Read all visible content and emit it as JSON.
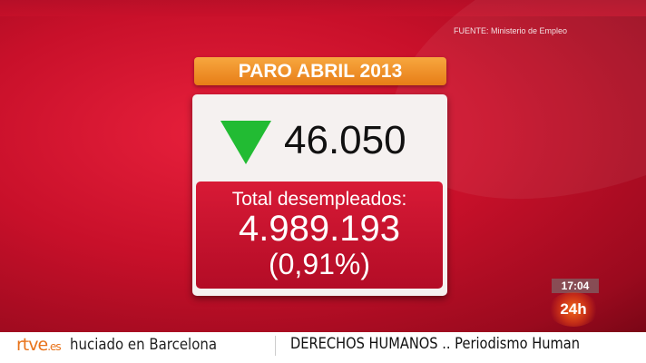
{
  "source": "FUENTE: Ministerio de Empleo",
  "header": "PARO ABRIL 2013",
  "change": {
    "value": "46.050",
    "direction": "down",
    "icon": "green-down-triangle-icon",
    "color": "#22bb33"
  },
  "total": {
    "label": "Total desempleados:",
    "value": "4.989.193",
    "percent": "(0,91%)"
  },
  "clock": "17:04",
  "channel": "24h",
  "ticker": {
    "logo": "rtve",
    "logo_suffix": ".es",
    "left_text": "huciado en Barcelona",
    "right_text": "DERECHOS HUMANOS .. Periodismo Human"
  },
  "colors": {
    "background": "#c8102a",
    "header": "#f0921f",
    "accent": "#e8731a"
  }
}
